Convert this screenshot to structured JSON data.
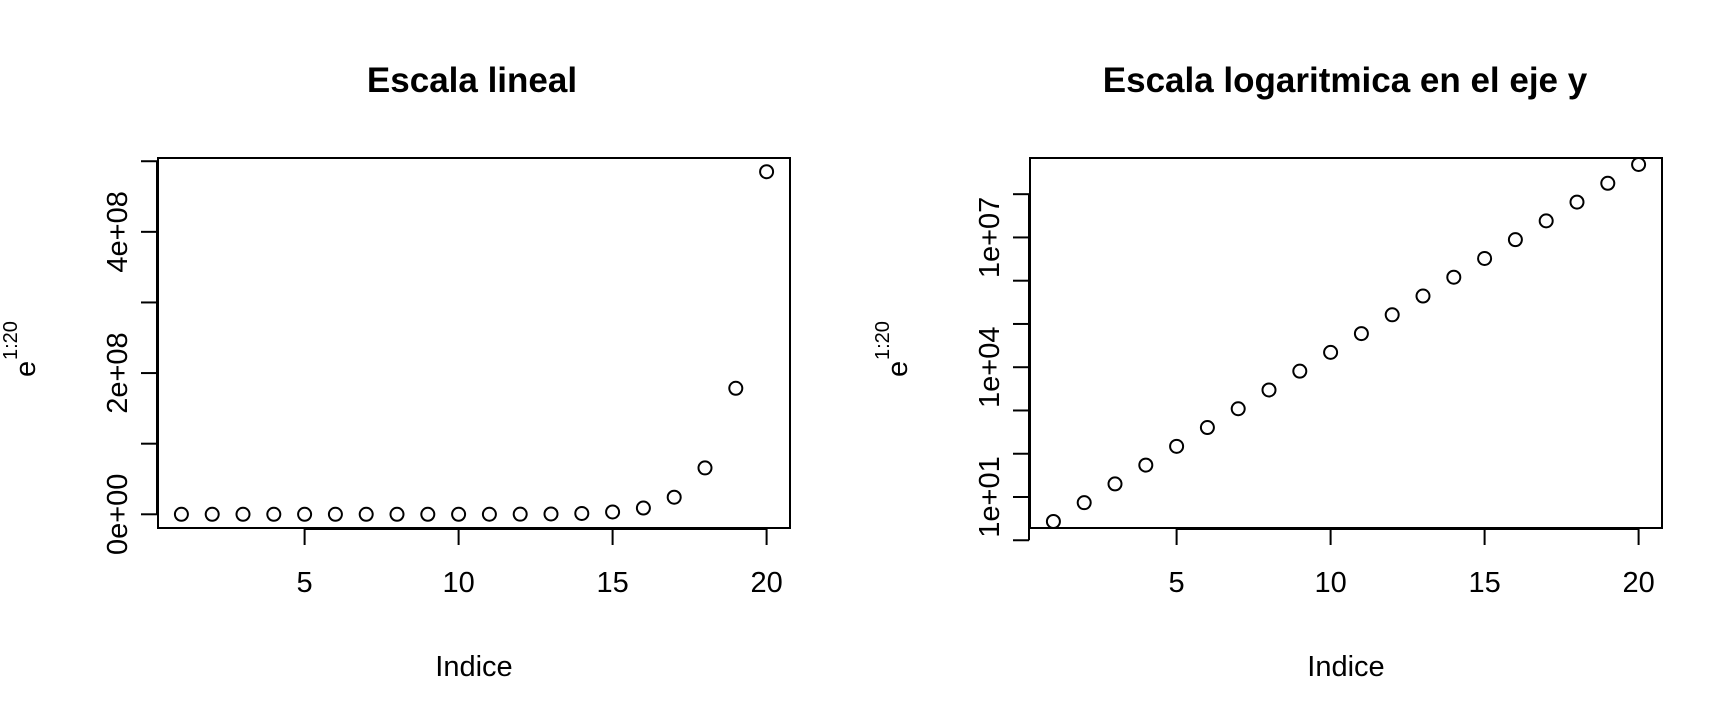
{
  "chart_data": [
    {
      "type": "scatter",
      "title": "Escala lineal",
      "xlabel": "Indice",
      "ylabel": "e",
      "ylabel_superscript": "1:20",
      "x": [
        1,
        2,
        3,
        4,
        5,
        6,
        7,
        8,
        9,
        10,
        11,
        12,
        13,
        14,
        15,
        16,
        17,
        18,
        19,
        20
      ],
      "y": [
        2.718,
        7.389,
        20.09,
        54.6,
        148.4,
        403.4,
        1096.6,
        2981,
        8103,
        22026,
        59874,
        162755,
        442413,
        1202604,
        3269017,
        8886111,
        24154953,
        65659969,
        178482301,
        485165195
      ],
      "x_ticks": [
        5,
        10,
        15,
        20
      ],
      "x_tick_labels": [
        "5",
        "10",
        "15",
        "20"
      ],
      "y_ticks": [
        0,
        100000000,
        200000000,
        300000000,
        400000000,
        500000000
      ],
      "y_tick_labels": [
        "0e+00",
        "",
        "2e+08",
        "",
        "4e+08",
        ""
      ],
      "xlim": [
        0.24,
        20.76
      ],
      "ylim": [
        -19406604,
        504571802
      ],
      "y_scale": "linear",
      "marker": "open-circle",
      "grid": false,
      "legend": "none"
    },
    {
      "type": "scatter",
      "title": "Escala logaritmica en el eje y",
      "xlabel": "Indice",
      "ylabel": "e",
      "ylabel_superscript": "1:20",
      "x": [
        1,
        2,
        3,
        4,
        5,
        6,
        7,
        8,
        9,
        10,
        11,
        12,
        13,
        14,
        15,
        16,
        17,
        18,
        19,
        20
      ],
      "y": [
        2.718,
        7.389,
        20.09,
        54.6,
        148.4,
        403.4,
        1096.6,
        2981,
        8103,
        22026,
        59874,
        162755,
        442413,
        1202604,
        3269017,
        8886111,
        24154953,
        65659969,
        178482301,
        485165195
      ],
      "x_ticks": [
        5,
        10,
        15,
        20
      ],
      "x_tick_labels": [
        "5",
        "10",
        "15",
        "20"
      ],
      "y_ticks": [
        1,
        10,
        100,
        1000,
        10000,
        100000,
        1000000,
        10000000,
        100000000
      ],
      "y_tick_labels": [
        "",
        "1e+01",
        "",
        "",
        "1e+04",
        "",
        "",
        "1e+07",
        ""
      ],
      "xlim": [
        0.24,
        20.76
      ],
      "ylim": [
        1.92,
        686000000
      ],
      "y_scale": "log",
      "marker": "open-circle",
      "grid": false,
      "legend": "none"
    }
  ]
}
